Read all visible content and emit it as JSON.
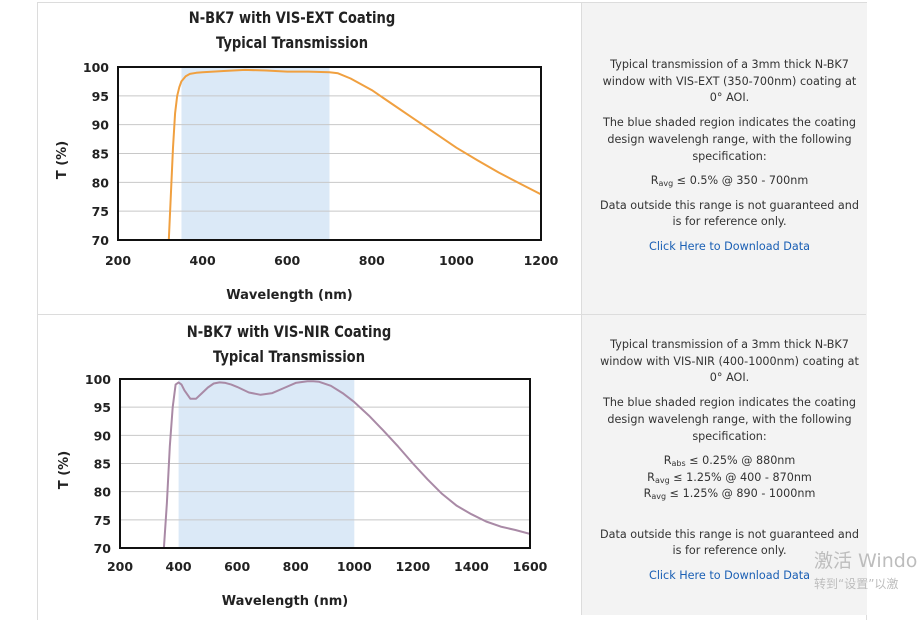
{
  "chart_data": [
    {
      "type": "line",
      "title": "N-BK7 with VIS-EXT Coating",
      "subtitle": "Typical Transmission",
      "xlabel": "Wavelength (nm)",
      "ylabel": "T (%)",
      "xlim": [
        200,
        1200
      ],
      "ylim": [
        70,
        100
      ],
      "xticks": [
        200,
        400,
        600,
        800,
        1000,
        1200
      ],
      "yticks": [
        70,
        75,
        80,
        85,
        90,
        95,
        100
      ],
      "shaded_region": [
        350,
        700
      ],
      "grid": true,
      "line_color": "#f0a040",
      "shade_color": "#dbe9f7",
      "series": [
        {
          "x": [
            320,
            325,
            330,
            335,
            340,
            345,
            350,
            360,
            370,
            385,
            400,
            450,
            500,
            550,
            600,
            650,
            700,
            720,
            750,
            800,
            850,
            900,
            950,
            1000,
            1050,
            1100,
            1150,
            1200
          ],
          "y": [
            70,
            78,
            86,
            92,
            95,
            96.5,
            97.5,
            98.4,
            98.8,
            99.0,
            99.1,
            99.3,
            99.5,
            99.4,
            99.2,
            99.2,
            99.1,
            98.9,
            98.0,
            96.0,
            93.5,
            91.0,
            88.5,
            86.0,
            83.8,
            81.7,
            79.8,
            77.9
          ]
        }
      ]
    },
    {
      "type": "line",
      "title": "N-BK7 with VIS-NIR Coating",
      "subtitle": "Typical Transmission",
      "xlabel": "Wavelength (nm)",
      "ylabel": "T (%)",
      "xlim": [
        200,
        1600
      ],
      "ylim": [
        70,
        100
      ],
      "xticks": [
        200,
        400,
        600,
        800,
        1000,
        1200,
        1400,
        1600
      ],
      "yticks": [
        70,
        75,
        80,
        85,
        90,
        95,
        100
      ],
      "shaded_region": [
        400,
        1000
      ],
      "grid": true,
      "line_color": "#a98aa6",
      "shade_color": "#dbe9f7",
      "series": [
        {
          "x": [
            350,
            360,
            370,
            380,
            390,
            400,
            410,
            420,
            440,
            460,
            480,
            500,
            520,
            540,
            560,
            580,
            600,
            640,
            680,
            720,
            760,
            800,
            840,
            860,
            880,
            920,
            960,
            1000,
            1050,
            1100,
            1150,
            1200,
            1250,
            1300,
            1350,
            1400,
            1450,
            1500,
            1550,
            1600
          ],
          "y": [
            70,
            78,
            88,
            95,
            99,
            99.4,
            99.0,
            98.0,
            96.5,
            96.5,
            97.5,
            98.5,
            99.2,
            99.4,
            99.3,
            99.0,
            98.6,
            97.6,
            97.2,
            97.5,
            98.4,
            99.3,
            99.6,
            99.6,
            99.5,
            98.8,
            97.5,
            95.9,
            93.5,
            90.8,
            88.0,
            85.0,
            82.2,
            79.6,
            77.5,
            76.0,
            74.7,
            73.8,
            73.2,
            72.5
          ]
        }
      ]
    }
  ],
  "rows": [
    {
      "desc1": "Typical transmission of a 3mm thick N-BK7 window with VIS-EXT (350-700nm) coating at 0° AOI.",
      "desc2": "The blue shaded region indicates the coating design wavelengh range, with the following specification:",
      "specs": [
        {
          "sym": "R",
          "sub": "avg",
          "text": "≤ 0.5% @ 350 - 700nm"
        }
      ],
      "note": "Data outside this range is not guaranteed and is for reference only.",
      "link": "Click Here to Download Data"
    },
    {
      "desc1": "Typical transmission of a 3mm thick N-BK7 window with VIS-NIR (400-1000nm) coating at 0° AOI.",
      "desc2": "The blue shaded region indicates the coating design wavelengh range, with the following specification:",
      "specs": [
        {
          "sym": "R",
          "sub": "abs",
          "text": "≤ 0.25% @ 880nm"
        },
        {
          "sym": "R",
          "sub": "avg",
          "text": "≤ 1.25% @ 400 - 870nm"
        },
        {
          "sym": "R",
          "sub": "avg",
          "text": "≤ 1.25% @ 890 - 1000nm"
        }
      ],
      "note": "Data outside this range is not guaranteed and is for reference only.",
      "link": "Click Here to Download Data"
    }
  ],
  "watermark": {
    "line1": "激活 Windo",
    "line2": "转到“设置”以激"
  }
}
